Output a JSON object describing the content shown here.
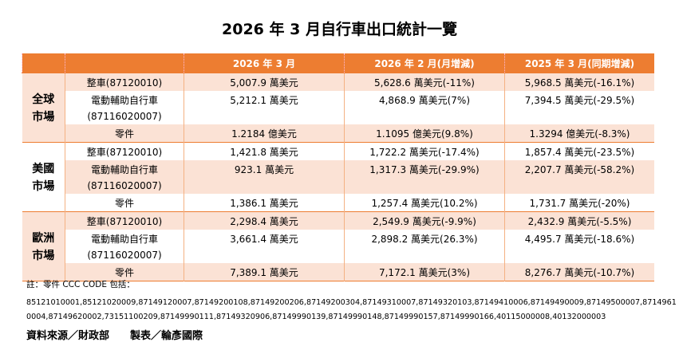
{
  "title": "2026 年 3 月自行車出口統計一覽",
  "headers": [
    "",
    "",
    "2026 年 3 月",
    "2026 年 2 月(月增減)",
    "2025 年 3 月(同期增減)"
  ],
  "regions": [
    {
      "name": [
        "全球",
        "市場"
      ],
      "rows": [
        {
          "product": [
            "整車(87120010)"
          ],
          "v1": "5,007.9 萬美元",
          "v2": "5,628.6 萬美元(-11%)",
          "v3": "5,968.5 萬美元(-16.1%)"
        },
        {
          "product": [
            "電動輔助自行車",
            "(87116020007)"
          ],
          "v1": "5,212.1 萬美元",
          "v2": "4,868.9 萬美元(7%)",
          "v3": "7,394.5 萬美元(-29.5%)"
        },
        {
          "product": [
            "零件"
          ],
          "v1": "1.2184 億美元",
          "v2": "1.1095 億美元(9.8%)",
          "v3": "1.3294 億美元(-8.3%)"
        }
      ]
    },
    {
      "name": [
        "美國",
        "市場"
      ],
      "rows": [
        {
          "product": [
            "整車(87120010)"
          ],
          "v1": "1,421.8 萬美元",
          "v2": "1,722.2 萬美元(-17.4%)",
          "v3": "1,857.4 萬美元(-23.5%)"
        },
        {
          "product": [
            "電動輔助自行車",
            "(87116020007)"
          ],
          "v1": "923.1 萬美元",
          "v2": "1,317.3 萬美元(-29.9%)",
          "v3": "2,207.7 萬美元(-58.2%)"
        },
        {
          "product": [
            "零件"
          ],
          "v1": "1,386.1 萬美元",
          "v2": "1,257.4 萬美元(10.2%)",
          "v3": "1,731.7 萬美元(-20%)"
        }
      ]
    },
    {
      "name": [
        "歐洲",
        "市場"
      ],
      "rows": [
        {
          "product": [
            "整車(87120010)"
          ],
          "v1": "2,298.4 萬美元",
          "v2": "2,549.9 萬美元(-9.9%)",
          "v3": "2,432.9 萬美元(-5.5%)"
        },
        {
          "product": [
            "電動輔助自行車",
            "(87116020007)"
          ],
          "v1": "3,661.4 萬美元",
          "v2": "2,898.2 萬美元(26.3%)",
          "v3": "4,495.7 萬美元(-18.6%)"
        },
        {
          "product": [
            "零件"
          ],
          "v1": "7,389.1 萬美元",
          "v2": "7,172.1 萬美元(3%)",
          "v3": "8,276.7 萬美元(-10.7%)"
        }
      ]
    }
  ],
  "note": "註：零件 CCC CODE 包括：",
  "codes_line1": "85121010001,85121020009,87149120007,87149200108,87149200206,87149200304,87149310007,87149320103,87149410006,87149490009,87149500007,8714961",
  "codes_line2": "0004,87149620002,73151100209,87149990111,87149320906,87149990139,87149990148,87149990157,87149990166,40115000008,40132000003",
  "source": "資料來源／財政部　　製表／輪彥國際",
  "colors": {
    "header": "#ED7D31",
    "band": "#FBE2D5"
  }
}
